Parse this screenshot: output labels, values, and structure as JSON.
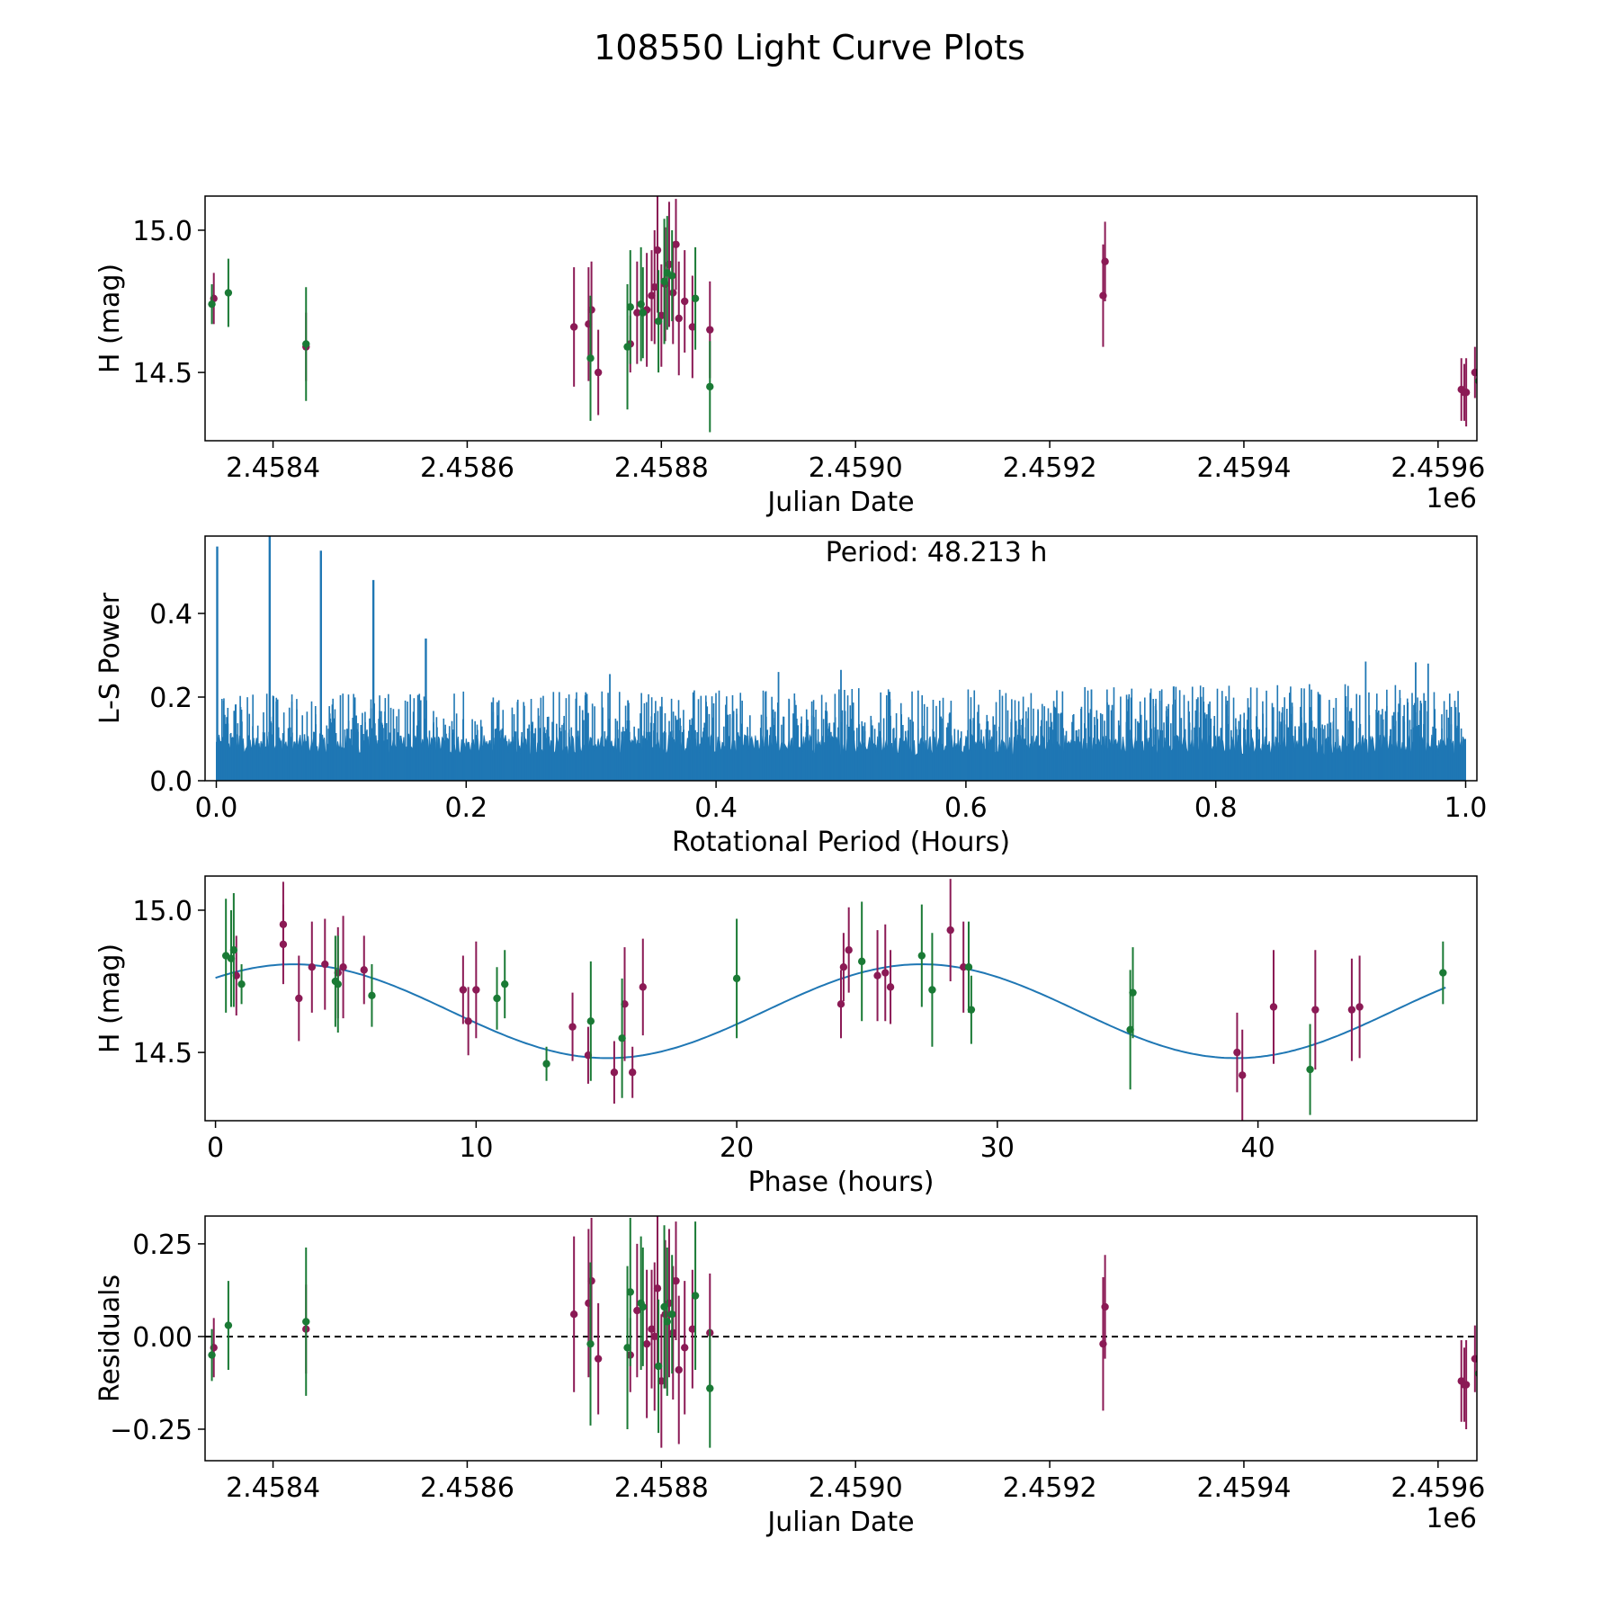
{
  "title": "108550 Light Curve Plots",
  "colors": {
    "magenta": "#8b1a55",
    "green": "#1a7a35",
    "blue": "#1f77b4",
    "black": "#000000"
  },
  "chart_data": [
    {
      "type": "scatter",
      "name": "light-curve",
      "xlabel": "Julian Date",
      "ylabel": "H (mag)",
      "offset_label": "1e6",
      "xlim": [
        2.45833,
        2.45964
      ],
      "ylim": [
        14.26,
        15.12
      ],
      "inverted_y": false,
      "x_ticks": [
        "2.4584",
        "2.4586",
        "2.4588",
        "2.4590",
        "2.4592",
        "2.4594",
        "2.4596"
      ],
      "x_tick_values": [
        2.4584,
        2.4586,
        2.4588,
        2.459,
        2.4592,
        2.4594,
        2.4596
      ],
      "y_ticks": [
        "14.5",
        "15.0"
      ],
      "y_tick_values": [
        14.5,
        15.0
      ],
      "series": [
        {
          "name": "magenta",
          "color": "#8b1a55",
          "points": [
            [
              2.458339,
              14.76,
              0.09
            ],
            [
              2.458434,
              14.59,
              0.12
            ],
            [
              2.45871,
              14.66,
              0.21
            ],
            [
              2.458725,
              14.67,
              0.2
            ],
            [
              2.458728,
              14.72,
              0.17
            ],
            [
              2.458735,
              14.5,
              0.15
            ],
            [
              2.458768,
              14.6,
              0.1
            ],
            [
              2.458775,
              14.71,
              0.18
            ],
            [
              2.458785,
              14.72,
              0.2
            ],
            [
              2.45879,
              14.77,
              0.16
            ],
            [
              2.458793,
              14.8,
              0.2
            ],
            [
              2.458796,
              14.93,
              0.22
            ],
            [
              2.4588,
              14.7,
              0.18
            ],
            [
              2.458804,
              14.81,
              0.2
            ],
            [
              2.458808,
              14.88,
              0.22
            ],
            [
              2.458812,
              14.78,
              0.18
            ],
            [
              2.458815,
              14.95,
              0.16
            ],
            [
              2.458818,
              14.69,
              0.2
            ],
            [
              2.458824,
              14.75,
              0.18
            ],
            [
              2.458832,
              14.66,
              0.18
            ],
            [
              2.45885,
              14.65,
              0.17
            ],
            [
              2.459255,
              14.77,
              0.18
            ],
            [
              2.459257,
              14.89,
              0.14
            ],
            [
              2.459624,
              14.44,
              0.11
            ],
            [
              2.459627,
              14.43,
              0.1
            ],
            [
              2.459629,
              14.43,
              0.12
            ],
            [
              2.459638,
              14.5,
              0.09
            ]
          ]
        },
        {
          "name": "green",
          "color": "#1a7a35",
          "points": [
            [
              2.458337,
              14.74,
              0.07
            ],
            [
              2.458354,
              14.78,
              0.12
            ],
            [
              2.458434,
              14.6,
              0.2
            ],
            [
              2.458727,
              14.55,
              0.22
            ],
            [
              2.458765,
              14.59,
              0.22
            ],
            [
              2.458768,
              14.73,
              0.2
            ],
            [
              2.458779,
              14.74,
              0.2
            ],
            [
              2.458781,
              14.71,
              0.16
            ],
            [
              2.458797,
              14.68,
              0.18
            ],
            [
              2.458803,
              14.82,
              0.22
            ],
            [
              2.458806,
              14.85,
              0.2
            ],
            [
              2.458811,
              14.84,
              0.16
            ],
            [
              2.458835,
              14.76,
              0.18
            ],
            [
              2.45885,
              14.45,
              0.16
            ],
            [
              2.459642,
              14.47,
              0.08
            ]
          ]
        }
      ]
    },
    {
      "type": "line",
      "name": "periodogram",
      "xlabel": "Rotational Period (Hours)",
      "ylabel": "L-S Power",
      "annotation": "Period: 48.213 h",
      "xlim": [
        -0.009,
        1.009
      ],
      "ylim": [
        0.0,
        0.585
      ],
      "x_ticks": [
        "0.0",
        "0.2",
        "0.4",
        "0.6",
        "0.8",
        "1.0"
      ],
      "x_tick_values": [
        0.0,
        0.2,
        0.4,
        0.6,
        0.8,
        1.0
      ],
      "y_ticks": [
        "0.0",
        "0.2",
        "0.4"
      ],
      "y_tick_values": [
        0.0,
        0.2,
        0.4
      ],
      "color": "#1f77b4",
      "noise_floor": 0.11,
      "noise_peak_typical": 0.2,
      "noise_peak_max": 0.28,
      "main_peaks": [
        [
          0.0,
          0.56
        ],
        [
          0.042,
          0.585
        ],
        [
          0.083,
          0.55
        ],
        [
          0.125,
          0.48
        ],
        [
          0.167,
          0.34
        ]
      ],
      "notable_peaks": [
        [
          0.315,
          0.255
        ],
        [
          0.45,
          0.26
        ],
        [
          0.5,
          0.265
        ],
        [
          0.92,
          0.285
        ],
        [
          0.96,
          0.283
        ],
        [
          0.97,
          0.28
        ]
      ]
    },
    {
      "type": "scatter",
      "name": "phased-curve",
      "xlabel": "Phase (hours)",
      "ylabel": "H (mag)",
      "xlim": [
        -0.4,
        48.4
      ],
      "ylim": [
        14.26,
        15.12
      ],
      "x_ticks": [
        "0",
        "10",
        "20",
        "30",
        "40"
      ],
      "x_tick_values": [
        0,
        10,
        20,
        30,
        40
      ],
      "y_ticks": [
        "14.5",
        "15.0"
      ],
      "y_tick_values": [
        14.5,
        15.0
      ],
      "model": {
        "mean": 14.645,
        "amplitude": 0.165,
        "period_hours": 24.1,
        "peak_phase": 3.0,
        "color": "#1f77b4",
        "x_range": [
          0,
          47.2
        ]
      },
      "series": [
        {
          "name": "magenta",
          "color": "#8b1a55",
          "points": [
            [
              0.8,
              14.77,
              0.14
            ],
            [
              2.6,
              14.95,
              0.15
            ],
            [
              2.6,
              14.88,
              0.14
            ],
            [
              3.2,
              14.69,
              0.15
            ],
            [
              3.7,
              14.8,
              0.16
            ],
            [
              4.2,
              14.81,
              0.16
            ],
            [
              4.7,
              14.78,
              0.16
            ],
            [
              4.9,
              14.8,
              0.18
            ],
            [
              5.7,
              14.79,
              0.12
            ],
            [
              9.5,
              14.72,
              0.12
            ],
            [
              9.7,
              14.61,
              0.12
            ],
            [
              10.0,
              14.72,
              0.17
            ],
            [
              13.7,
              14.59,
              0.12
            ],
            [
              14.3,
              14.49,
              0.1
            ],
            [
              15.3,
              14.43,
              0.11
            ],
            [
              15.7,
              14.67,
              0.2
            ],
            [
              16.0,
              14.43,
              0.09
            ],
            [
              16.4,
              14.73,
              0.17
            ],
            [
              24.0,
              14.67,
              0.12
            ],
            [
              24.1,
              14.8,
              0.12
            ],
            [
              24.3,
              14.86,
              0.15
            ],
            [
              25.4,
              14.77,
              0.16
            ],
            [
              25.7,
              14.78,
              0.17
            ],
            [
              25.9,
              14.73,
              0.13
            ],
            [
              28.2,
              14.93,
              0.18
            ],
            [
              28.7,
              14.8,
              0.16
            ],
            [
              39.2,
              14.5,
              0.14
            ],
            [
              39.4,
              14.42,
              0.16
            ],
            [
              40.6,
              14.66,
              0.2
            ],
            [
              42.2,
              14.65,
              0.21
            ],
            [
              43.6,
              14.65,
              0.18
            ],
            [
              43.9,
              14.66,
              0.18
            ]
          ]
        },
        {
          "name": "green",
          "color": "#1a7a35",
          "points": [
            [
              0.4,
              14.84,
              0.2
            ],
            [
              0.6,
              14.83,
              0.17
            ],
            [
              0.7,
              14.86,
              0.2
            ],
            [
              1.0,
              14.74,
              0.07
            ],
            [
              4.6,
              14.75,
              0.16
            ],
            [
              4.7,
              14.74,
              0.17
            ],
            [
              6.0,
              14.7,
              0.11
            ],
            [
              10.8,
              14.69,
              0.11
            ],
            [
              11.1,
              14.74,
              0.12
            ],
            [
              12.7,
              14.46,
              0.06
            ],
            [
              14.4,
              14.61,
              0.21
            ],
            [
              15.6,
              14.55,
              0.21
            ],
            [
              20.0,
              14.76,
              0.21
            ],
            [
              24.8,
              14.82,
              0.21
            ],
            [
              27.1,
              14.84,
              0.18
            ],
            [
              27.5,
              14.72,
              0.2
            ],
            [
              28.9,
              14.8,
              0.16
            ],
            [
              29.0,
              14.65,
              0.12
            ],
            [
              35.1,
              14.58,
              0.21
            ],
            [
              35.2,
              14.71,
              0.16
            ],
            [
              42.0,
              14.44,
              0.16
            ],
            [
              47.1,
              14.78,
              0.11
            ]
          ]
        }
      ]
    },
    {
      "type": "scatter",
      "name": "residuals",
      "xlabel": "Julian Date",
      "ylabel": "Residuals",
      "offset_label": "1e6",
      "xlim": [
        2.45833,
        2.45964
      ],
      "ylim": [
        -0.335,
        0.325
      ],
      "x_ticks": [
        "2.4584",
        "2.4586",
        "2.4588",
        "2.4590",
        "2.4592",
        "2.4594",
        "2.4596"
      ],
      "x_tick_values": [
        2.4584,
        2.4586,
        2.4588,
        2.459,
        2.4592,
        2.4594,
        2.4596
      ],
      "y_ticks": [
        "0.25",
        "0.00",
        "−0.25"
      ],
      "y_tick_values": [
        0.25,
        0.0,
        -0.25
      ],
      "zero_line": 0.0,
      "series": [
        {
          "name": "magenta",
          "color": "#8b1a55",
          "points": [
            [
              2.458339,
              -0.03,
              0.08
            ],
            [
              2.458434,
              0.02,
              0.12
            ],
            [
              2.45871,
              0.06,
              0.21
            ],
            [
              2.458725,
              0.09,
              0.2
            ],
            [
              2.458728,
              0.15,
              0.17
            ],
            [
              2.458735,
              -0.06,
              0.15
            ],
            [
              2.458768,
              -0.05,
              0.1
            ],
            [
              2.458775,
              0.07,
              0.18
            ],
            [
              2.458785,
              -0.02,
              0.2
            ],
            [
              2.45879,
              0.02,
              0.16
            ],
            [
              2.458793,
              0.0,
              0.2
            ],
            [
              2.458796,
              0.13,
              0.22
            ],
            [
              2.4588,
              -0.12,
              0.18
            ],
            [
              2.458804,
              0.06,
              0.2
            ],
            [
              2.458808,
              0.09,
              0.2
            ],
            [
              2.458812,
              0.01,
              0.18
            ],
            [
              2.458815,
              0.15,
              0.16
            ],
            [
              2.458818,
              -0.09,
              0.2
            ],
            [
              2.458824,
              -0.03,
              0.18
            ],
            [
              2.458832,
              0.02,
              0.16
            ],
            [
              2.45885,
              0.01,
              0.16
            ],
            [
              2.459255,
              -0.02,
              0.18
            ],
            [
              2.459257,
              0.08,
              0.14
            ],
            [
              2.459624,
              -0.12,
              0.11
            ],
            [
              2.459627,
              -0.13,
              0.1
            ],
            [
              2.459629,
              -0.13,
              0.12
            ],
            [
              2.459638,
              -0.06,
              0.09
            ]
          ]
        },
        {
          "name": "green",
          "color": "#1a7a35",
          "points": [
            [
              2.458337,
              -0.05,
              0.07
            ],
            [
              2.458354,
              0.03,
              0.12
            ],
            [
              2.458434,
              0.04,
              0.2
            ],
            [
              2.458727,
              -0.02,
              0.22
            ],
            [
              2.458765,
              -0.03,
              0.22
            ],
            [
              2.458768,
              0.12,
              0.2
            ],
            [
              2.458779,
              0.09,
              0.18
            ],
            [
              2.458781,
              0.08,
              0.16
            ],
            [
              2.458797,
              -0.08,
              0.18
            ],
            [
              2.458803,
              0.08,
              0.22
            ],
            [
              2.458806,
              0.04,
              0.2
            ],
            [
              2.458811,
              0.06,
              0.16
            ],
            [
              2.458835,
              0.11,
              0.2
            ],
            [
              2.45885,
              -0.14,
              0.16
            ],
            [
              2.459642,
              -0.1,
              0.08
            ]
          ]
        }
      ]
    }
  ]
}
